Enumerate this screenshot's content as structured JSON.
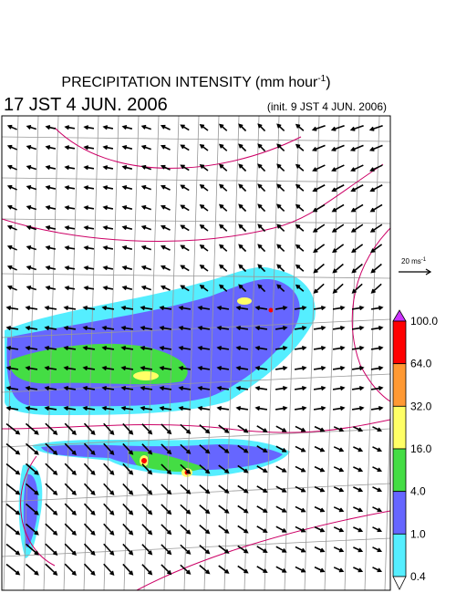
{
  "header": {
    "title": "PRECIPITATION INTENSITY (mm hour",
    "title_sup": "-1",
    "title_end": ")",
    "valid_time": "17 JST 4 JUN. 2006",
    "init_time": "(init. 9 JST 4 JUN. 2006)"
  },
  "wind_scale": {
    "label": "20 ms",
    "label_sup": "-1"
  },
  "colorbar": {
    "labels": [
      "100.0",
      "64.0",
      "32.0",
      "16.0",
      "4.0",
      "1.0",
      "0.4"
    ],
    "colors": [
      "#ff0000",
      "#ff9933",
      "#ffff66",
      "#44dd44",
      "#6666ff",
      "#55eeff"
    ],
    "over_color": "#cc33ff",
    "under_color": "#ffffff"
  }
}
